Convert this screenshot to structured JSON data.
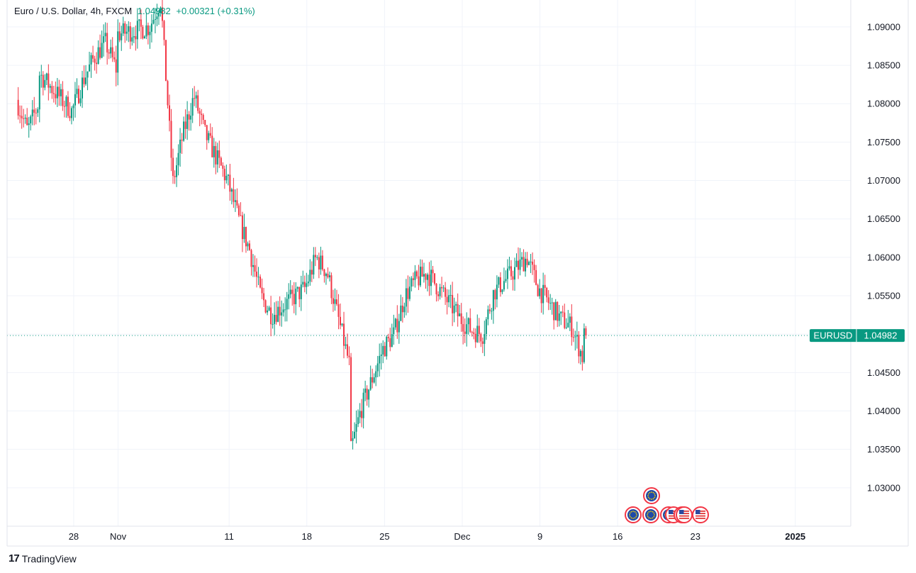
{
  "header": {
    "symbol": "Euro / U.S. Dollar, 4h, FXCM",
    "last": "1.04982",
    "change": "+0.00321 (+0.31%)"
  },
  "brand": {
    "name": "TradingView",
    "logo": "tradingview-logo-icon"
  },
  "price_tag": {
    "ticker": "EURUSD",
    "price": "1.04982"
  },
  "colors": {
    "up": "#089981",
    "down": "#f23645",
    "grid": "#f0f3fa",
    "text": "#131722"
  },
  "events": {
    "upper_row": [
      "eu-flag-icon"
    ],
    "lower_row": [
      "eu-flag-icon",
      "eu-flag-icon",
      "eu-flag-icon",
      "us-flag-icon",
      "eu-flag-icon",
      "us-flag-icon",
      "us-flag-icon"
    ]
  },
  "chart_data": {
    "type": "candlestick",
    "title": "Euro / U.S. Dollar, 4h, FXCM",
    "interval": "4h",
    "grid": true,
    "ylim": [
      1.025,
      1.0935
    ],
    "y_ticks": [
      "1.09000",
      "1.08500",
      "1.08000",
      "1.07500",
      "1.07000",
      "1.06500",
      "1.06000",
      "1.05500",
      "1.05000",
      "1.04500",
      "1.04000",
      "1.03500",
      "1.03000"
    ],
    "x_ticks": [
      {
        "label": "28",
        "date": "2024-10-28"
      },
      {
        "label": "Nov",
        "date": "2024-11-01"
      },
      {
        "label": "11",
        "date": "2024-11-11"
      },
      {
        "label": "18",
        "date": "2024-11-18"
      },
      {
        "label": "25",
        "date": "2024-11-25"
      },
      {
        "label": "Dec",
        "date": "2024-12-02"
      },
      {
        "label": "9",
        "date": "2024-12-09"
      },
      {
        "label": "16",
        "date": "2024-12-16"
      },
      {
        "label": "23",
        "date": "2024-12-23"
      },
      {
        "label": "2025",
        "date": "2025-01-01"
      }
    ],
    "last_price": 1.04982,
    "path": [
      [
        "2024-10-23",
        1.0805
      ],
      [
        "2024-10-24",
        1.0765
      ],
      [
        "2024-10-25",
        1.08
      ],
      [
        "2024-10-25",
        1.084
      ],
      [
        "2024-10-28",
        1.079
      ],
      [
        "2024-10-29",
        1.083
      ],
      [
        "2024-10-30",
        1.086
      ],
      [
        "2024-10-31",
        1.088
      ],
      [
        "2024-11-01",
        1.0845
      ],
      [
        "2024-11-01",
        1.089
      ],
      [
        "2024-11-04",
        1.09
      ],
      [
        "2024-11-05",
        1.0935
      ],
      [
        "2024-11-06",
        1.072
      ],
      [
        "2024-11-06",
        1.069
      ],
      [
        "2024-11-07",
        1.076
      ],
      [
        "2024-11-08",
        1.081
      ],
      [
        "2024-11-09",
        1.076
      ],
      [
        "2024-11-11",
        1.07
      ],
      [
        "2024-11-12",
        1.065
      ],
      [
        "2024-11-13",
        1.061
      ],
      [
        "2024-11-14",
        1.055
      ],
      [
        "2024-11-15",
        1.0525
      ],
      [
        "2024-11-18",
        1.056
      ],
      [
        "2024-11-19",
        1.06
      ],
      [
        "2024-11-20",
        1.058
      ],
      [
        "2024-11-21",
        1.052
      ],
      [
        "2024-11-22",
        1.046
      ],
      [
        "2024-11-22",
        1.034
      ],
      [
        "2024-11-23",
        1.04
      ],
      [
        "2024-11-25",
        1.048
      ],
      [
        "2024-11-26",
        1.05
      ],
      [
        "2024-11-27",
        1.055
      ],
      [
        "2024-11-28",
        1.057
      ],
      [
        "2024-11-29",
        1.058
      ],
      [
        "2024-12-02",
        1.052
      ],
      [
        "2024-12-03",
        1.0505
      ],
      [
        "2024-12-04",
        1.05
      ],
      [
        "2024-12-05",
        1.0555
      ],
      [
        "2024-12-06",
        1.057
      ],
      [
        "2024-12-08",
        1.06
      ],
      [
        "2024-12-09",
        1.056
      ],
      [
        "2024-12-10",
        1.054
      ],
      [
        "2024-12-11",
        1.052
      ],
      [
        "2024-12-12",
        1.051
      ],
      [
        "2024-12-13",
        1.047
      ],
      [
        "2024-12-13",
        1.0498
      ]
    ]
  }
}
